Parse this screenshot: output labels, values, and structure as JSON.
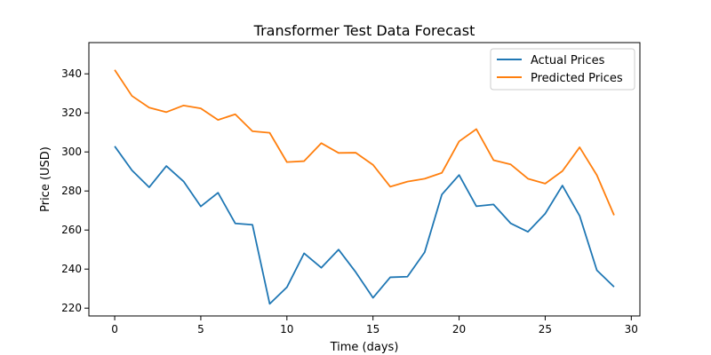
{
  "chart_data": {
    "type": "line",
    "title": "Transformer Test Data Forecast",
    "xlabel": "Time (days)",
    "ylabel": "Price (USD)",
    "xlim": [
      -1.5,
      30.5
    ],
    "ylim": [
      216,
      356
    ],
    "xticks": [
      0,
      5,
      10,
      15,
      20,
      25,
      30
    ],
    "yticks": [
      220,
      240,
      260,
      280,
      300,
      320,
      340
    ],
    "grid": false,
    "legend_position": "top-right",
    "x": [
      0,
      1,
      2,
      3,
      4,
      5,
      6,
      7,
      8,
      9,
      10,
      11,
      12,
      13,
      14,
      15,
      16,
      17,
      18,
      19,
      20,
      21,
      22,
      23,
      24,
      25,
      26,
      27,
      28,
      29
    ],
    "series": [
      {
        "name": "Actual Prices",
        "color": "#1f77b4",
        "values": [
          302.9,
          290.6,
          281.9,
          292.8,
          284.9,
          272.1,
          279.1,
          263.4,
          262.7,
          222.2,
          230.7,
          248.1,
          240.7,
          250.0,
          238.4,
          225.3,
          235.8,
          236.1,
          248.6,
          278.2,
          288.2,
          272.2,
          273.1,
          263.4,
          259.1,
          268.4,
          282.8,
          267.3,
          239.4,
          230.9
        ]
      },
      {
        "name": "Predicted Prices",
        "color": "#ff7f0e",
        "values": [
          342.0,
          328.7,
          322.7,
          320.4,
          323.8,
          322.3,
          316.4,
          319.3,
          310.6,
          309.8,
          294.8,
          295.3,
          304.5,
          299.5,
          299.6,
          293.4,
          282.2,
          284.8,
          286.3,
          289.3,
          305.4,
          311.7,
          295.8,
          293.6,
          286.3,
          283.8,
          290.2,
          302.4,
          288.1,
          267.6
        ]
      }
    ]
  }
}
